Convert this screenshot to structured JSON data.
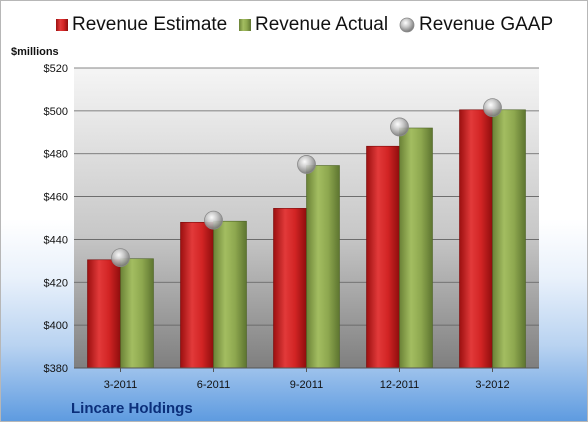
{
  "chart_data": {
    "type": "bar",
    "unit_label": "$millions",
    "company": "Lincare Holdings",
    "categories": [
      "3-2011",
      "6-2011",
      "9-2011",
      "12-2011",
      "3-2012"
    ],
    "ylim": [
      380,
      520
    ],
    "ytick_values": [
      380,
      400,
      420,
      440,
      460,
      480,
      500,
      520
    ],
    "ytick_labels": [
      "$380",
      "$400",
      "$420",
      "$440",
      "$460",
      "$480",
      "$500",
      "$520"
    ],
    "grid": true,
    "legend_position": "top",
    "series": [
      {
        "name": "Revenue Estimate",
        "kind": "bar",
        "color": "#cc1f1f",
        "values": [
          430.5,
          448,
          454.5,
          483.5,
          500.5
        ]
      },
      {
        "name": "Revenue Actual",
        "kind": "bar",
        "color": "#8aa64a",
        "values": [
          431,
          448.5,
          474.5,
          492,
          500.5
        ]
      },
      {
        "name": "Revenue GAAP",
        "kind": "marker",
        "color": "#b8b8b8",
        "values": [
          431.5,
          449,
          475,
          492.5,
          501.5
        ]
      }
    ]
  }
}
